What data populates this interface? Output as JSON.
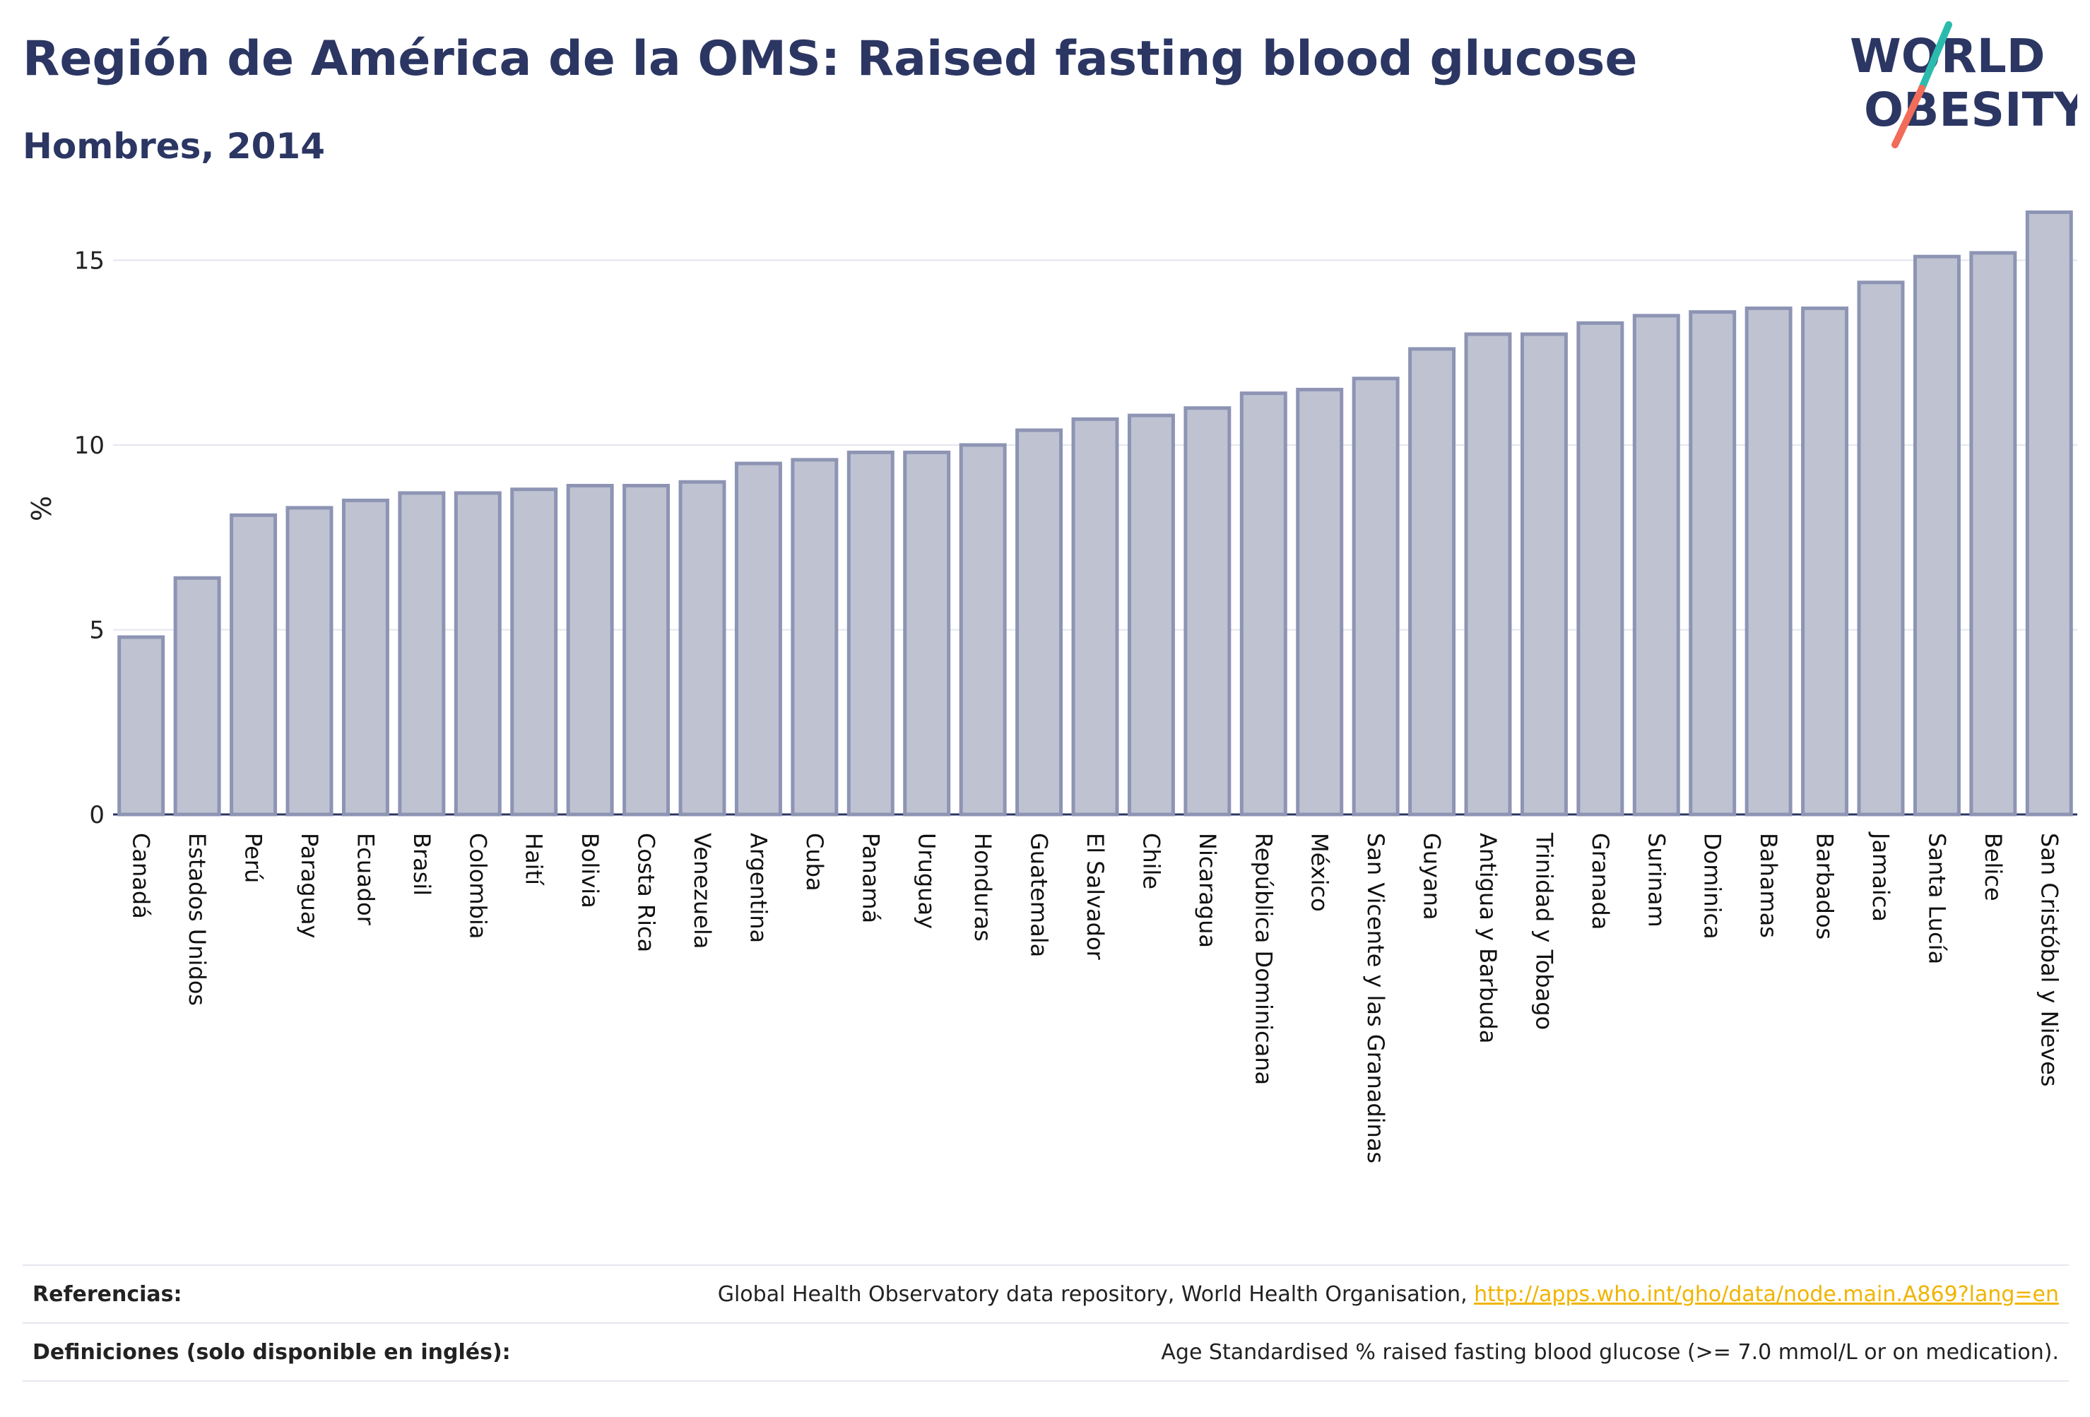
{
  "header": {
    "title": "Región de América de la OMS: Raised fasting blood glucose",
    "subtitle": "Hombres, 2014"
  },
  "logo": {
    "line1": "WORLD",
    "line2": "OBESITY",
    "colors": {
      "text": "#2b3663",
      "slash_top": "#2bbbad",
      "slash_bottom": "#f26c5a"
    }
  },
  "chart_data": {
    "type": "bar",
    "ylabel": "%",
    "ylim": [
      0,
      16.5
    ],
    "yticks": [
      0,
      5,
      10,
      15
    ],
    "grid": true,
    "bar_color": "#bfc3d1",
    "bar_edge_color": "#8d94b4",
    "categories": [
      "Canadá",
      "Estados Unidos",
      "Perú",
      "Paraguay",
      "Ecuador",
      "Brasil",
      "Colombia",
      "Haití",
      "Bolivia",
      "Costa Rica",
      "Venezuela",
      "Argentina",
      "Cuba",
      "Panamá",
      "Uruguay",
      "Honduras",
      "Guatemala",
      "El Salvador",
      "Chile",
      "Nicaragua",
      "República Dominicana",
      "México",
      "San Vicente y las Granadinas",
      "Guyana",
      "Antigua y Barbuda",
      "Trinidad y Tobago",
      "Granada",
      "Surinam",
      "Dominica",
      "Bahamas",
      "Barbados",
      "Jamaica",
      "Santa Lucía",
      "Belice",
      "San Cristóbal y Nieves"
    ],
    "values": [
      4.8,
      6.4,
      8.1,
      8.3,
      8.5,
      8.7,
      8.7,
      8.8,
      8.9,
      8.9,
      9.0,
      9.5,
      9.6,
      9.8,
      9.8,
      10.0,
      10.4,
      10.7,
      10.8,
      11.0,
      11.4,
      11.5,
      11.8,
      12.6,
      13.0,
      13.0,
      13.3,
      13.5,
      13.6,
      13.7,
      13.7,
      14.4,
      15.1,
      15.2,
      16.3
    ]
  },
  "footer": {
    "references_label": "Referencias:",
    "references_text": "Global Health Observatory data repository, World Health Organisation, ",
    "references_link": "http://apps.who.int/gho/data/node.main.A869?lang=en",
    "definitions_label": "Definiciones (solo disponible en inglés):",
    "definitions_text": "Age Standardised % raised fasting blood glucose (>= 7.0 mmol/L or on medication)."
  }
}
